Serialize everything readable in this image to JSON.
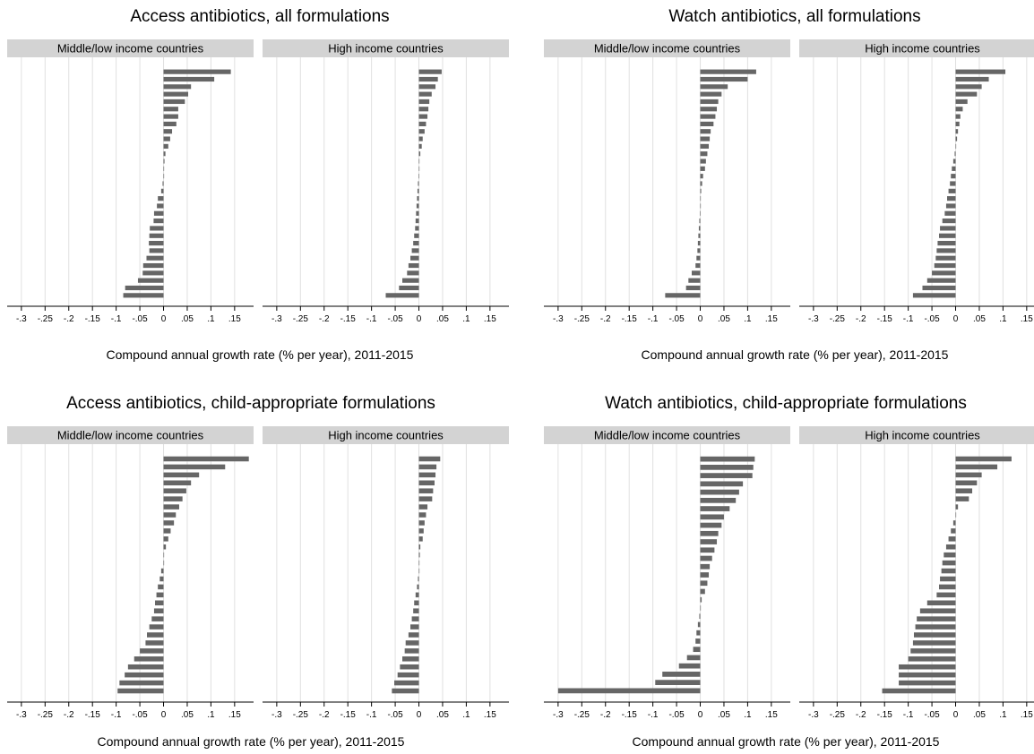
{
  "figure": {
    "xlabel": "Compound annual growth rate (% per year), 2011-2015",
    "facet_labels": [
      "Middle/low income countries",
      "High income countries"
    ],
    "ticks": [
      "-.3",
      "-.25",
      "-.2",
      "-.15",
      "-.1",
      "-.05",
      "0",
      ".05",
      ".1",
      ".15"
    ],
    "tick_values": [
      -0.3,
      -0.25,
      -0.2,
      -0.15,
      -0.1,
      -0.05,
      0,
      0.05,
      0.1,
      0.15
    ],
    "xlim": [
      -0.33,
      0.19
    ],
    "colors": {
      "bar": "#666666",
      "strip": "#d3d3d3",
      "grid": "#e0e0e0",
      "axis": "#000000"
    }
  },
  "chart_data": [
    {
      "type": "bar",
      "orientation": "horizontal",
      "title": "Access antibiotics, all formulations",
      "xlabel": "Compound annual growth rate (% per year), 2011-2015",
      "xlim": [
        -0.33,
        0.19
      ],
      "grid": true,
      "facets": [
        {
          "name": "Middle/low income countries",
          "values": [
            0.142,
            0.107,
            0.058,
            0.052,
            0.045,
            0.031,
            0.031,
            0.027,
            0.018,
            0.014,
            0.01,
            0.004,
            0.002,
            0.001,
            0.0,
            -0.002,
            -0.005,
            -0.012,
            -0.014,
            -0.02,
            -0.021,
            -0.029,
            -0.03,
            -0.031,
            -0.03,
            -0.036,
            -0.043,
            -0.044,
            -0.054,
            -0.081,
            -0.085
          ]
        },
        {
          "name": "High income countries",
          "values": [
            0.048,
            0.04,
            0.035,
            0.027,
            0.022,
            0.02,
            0.018,
            0.015,
            0.012,
            0.008,
            0.006,
            0.003,
            0.001,
            0.0,
            -0.001,
            -0.002,
            -0.003,
            -0.004,
            -0.005,
            -0.006,
            -0.007,
            -0.008,
            -0.01,
            -0.012,
            -0.015,
            -0.018,
            -0.022,
            -0.025,
            -0.035,
            -0.042,
            -0.07
          ]
        }
      ]
    },
    {
      "type": "bar",
      "orientation": "horizontal",
      "title": "Watch antibiotics, all formulations",
      "xlabel": "Compound annual growth rate (% per year), 2011-2015",
      "xlim": [
        -0.33,
        0.19
      ],
      "grid": true,
      "facets": [
        {
          "name": "Middle/low income countries",
          "values": [
            0.118,
            0.1,
            0.058,
            0.045,
            0.038,
            0.035,
            0.032,
            0.028,
            0.022,
            0.02,
            0.018,
            0.015,
            0.012,
            0.01,
            0.006,
            0.004,
            0.002,
            0.001,
            0.0,
            -0.001,
            -0.002,
            -0.003,
            -0.004,
            -0.005,
            -0.006,
            -0.008,
            -0.01,
            -0.018,
            -0.025,
            -0.03,
            -0.074
          ]
        },
        {
          "name": "High income countries",
          "values": [
            0.105,
            0.07,
            0.055,
            0.045,
            0.025,
            0.015,
            0.01,
            0.008,
            0.005,
            0.003,
            0.001,
            -0.002,
            -0.005,
            -0.008,
            -0.01,
            -0.012,
            -0.015,
            -0.018,
            -0.02,
            -0.023,
            -0.028,
            -0.033,
            -0.035,
            -0.038,
            -0.04,
            -0.042,
            -0.045,
            -0.05,
            -0.06,
            -0.07,
            -0.09
          ]
        }
      ]
    },
    {
      "type": "bar",
      "orientation": "horizontal",
      "title": "Access antibiotics, child-appropriate formulations",
      "xlabel": "Compound annual growth rate (% per year), 2011-2015",
      "xlim": [
        -0.33,
        0.19
      ],
      "grid": true,
      "facets": [
        {
          "name": "Middle/low income countries",
          "values": [
            0.18,
            0.13,
            0.075,
            0.058,
            0.048,
            0.04,
            0.033,
            0.026,
            0.022,
            0.015,
            0.01,
            0.005,
            0.001,
            0.0,
            -0.005,
            -0.008,
            -0.012,
            -0.015,
            -0.018,
            -0.02,
            -0.025,
            -0.03,
            -0.035,
            -0.038,
            -0.05,
            -0.062,
            -0.075,
            -0.082,
            -0.093,
            -0.097
          ]
        },
        {
          "name": "High income countries",
          "values": [
            0.045,
            0.037,
            0.035,
            0.033,
            0.03,
            0.028,
            0.018,
            0.015,
            0.012,
            0.01,
            0.008,
            0.003,
            0.002,
            0.001,
            0.0,
            -0.002,
            -0.004,
            -0.007,
            -0.01,
            -0.012,
            -0.015,
            -0.018,
            -0.022,
            -0.028,
            -0.03,
            -0.035,
            -0.04,
            -0.045,
            -0.052,
            -0.057
          ]
        }
      ]
    },
    {
      "type": "bar",
      "orientation": "horizontal",
      "title": "Watch antibiotics, child-appropriate formulations",
      "xlabel": "Compound annual growth rate (% per year), 2011-2015",
      "xlim": [
        -0.33,
        0.19
      ],
      "grid": true,
      "facets": [
        {
          "name": "Middle/low income countries",
          "values": [
            0.115,
            0.112,
            0.11,
            0.09,
            0.082,
            0.075,
            0.062,
            0.05,
            0.045,
            0.038,
            0.035,
            0.03,
            0.025,
            0.02,
            0.018,
            0.015,
            0.01,
            0.003,
            0.001,
            -0.002,
            -0.005,
            -0.008,
            -0.01,
            -0.015,
            -0.028,
            -0.045,
            -0.08,
            -0.095,
            -0.3
          ]
        },
        {
          "name": "High income countries",
          "values": [
            0.118,
            0.088,
            0.055,
            0.045,
            0.035,
            0.028,
            0.005,
            0.0,
            -0.005,
            -0.01,
            -0.015,
            -0.02,
            -0.025,
            -0.028,
            -0.03,
            -0.033,
            -0.035,
            -0.04,
            -0.06,
            -0.075,
            -0.082,
            -0.085,
            -0.088,
            -0.09,
            -0.095,
            -0.1,
            -0.12,
            -0.12,
            -0.12,
            -0.155
          ]
        }
      ]
    }
  ]
}
